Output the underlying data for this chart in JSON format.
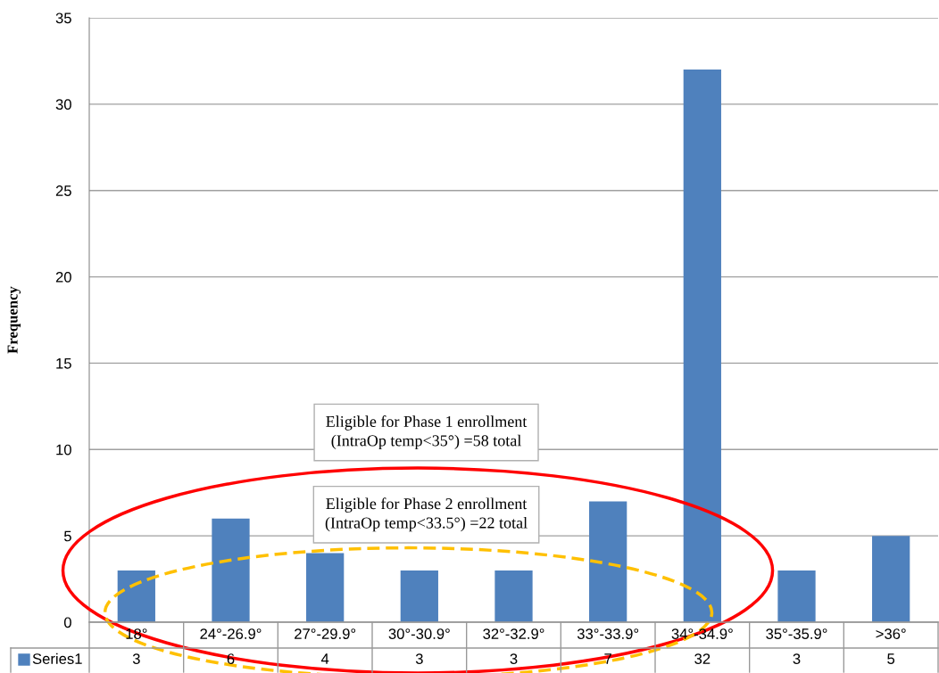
{
  "chart_data": {
    "type": "bar",
    "ylabel": "Frequency",
    "categories": [
      "18°",
      "24°-26.9°",
      "27°-29.9°",
      "30°-30.9°",
      "32°-32.9°",
      "33°-33.9°",
      "34°-34.9°",
      "35°-35.9°",
      ">36°"
    ],
    "series": [
      {
        "name": "Series1",
        "color": "#4f81bd",
        "values": [
          3,
          6,
          4,
          3,
          3,
          7,
          32,
          3,
          5
        ]
      }
    ],
    "ylim": [
      0,
      35
    ],
    "yticks": [
      0,
      5,
      10,
      15,
      20,
      25,
      30,
      35
    ],
    "grid": "y",
    "data_labels": true,
    "annotations": [
      "Eligible for Phase 1 enrollment\n(IntraOp temp<35°) =58 total",
      "Eligible for Phase 2 enrollment\n(IntraOp temp<33.5°) =22 total"
    ]
  }
}
